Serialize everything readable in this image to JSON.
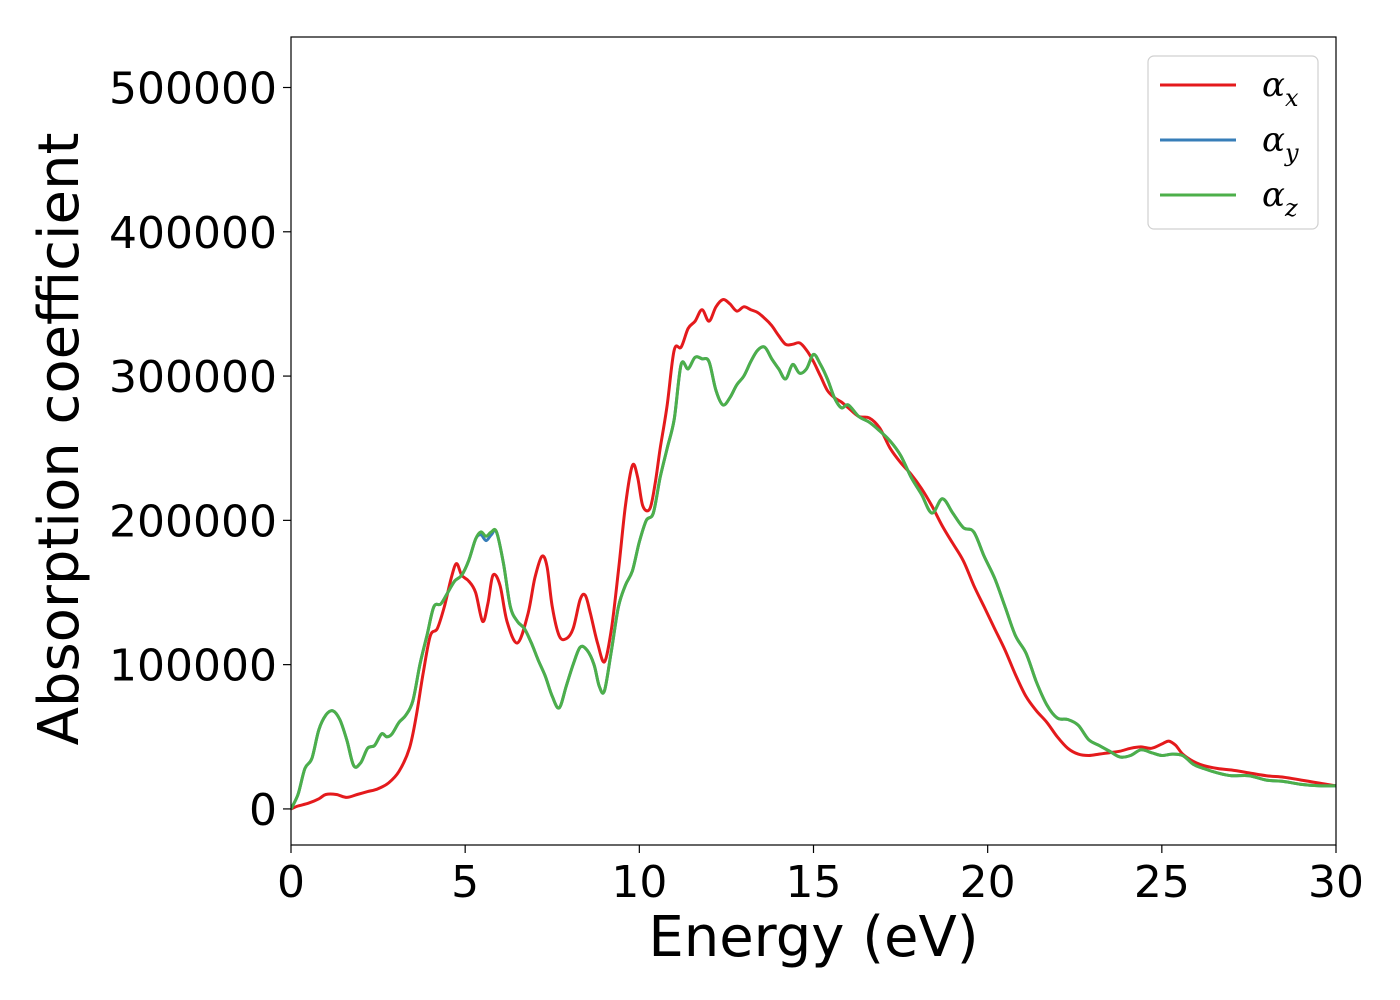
{
  "chart_data": {
    "type": "line",
    "xlabel": "Energy (eV)",
    "ylabel": "Absorption coefficient",
    "xlim": [
      0,
      30
    ],
    "ylim": [
      -25000,
      535000
    ],
    "xticks": [
      0,
      5,
      10,
      15,
      20,
      25,
      30
    ],
    "xtick_labels": [
      "0",
      "5",
      "10",
      "15",
      "20",
      "25",
      "30"
    ],
    "yticks": [
      0,
      100000,
      200000,
      300000,
      400000,
      500000
    ],
    "ytick_labels": [
      "0",
      "100000",
      "200000",
      "300000",
      "400000",
      "500000"
    ],
    "grid": false,
    "legend_position": "top-right",
    "series": [
      {
        "name": "α_x",
        "legend_base": "α",
        "legend_sub": "x",
        "color": "#e41a1c",
        "x": [
          0,
          0.2,
          0.5,
          0.8,
          1.0,
          1.3,
          1.6,
          1.9,
          2.2,
          2.5,
          2.8,
          3.1,
          3.4,
          3.6,
          3.8,
          4.0,
          4.2,
          4.4,
          4.6,
          4.75,
          4.9,
          5.1,
          5.3,
          5.5,
          5.65,
          5.8,
          6.0,
          6.2,
          6.5,
          6.8,
          7.0,
          7.2,
          7.35,
          7.5,
          7.7,
          7.9,
          8.1,
          8.3,
          8.45,
          8.6,
          8.8,
          9.0,
          9.2,
          9.4,
          9.6,
          9.8,
          9.95,
          10.1,
          10.3,
          10.45,
          10.6,
          10.8,
          11.0,
          11.2,
          11.4,
          11.6,
          11.8,
          12.0,
          12.2,
          12.4,
          12.6,
          12.8,
          13.0,
          13.2,
          13.4,
          13.6,
          13.8,
          14.0,
          14.2,
          14.4,
          14.6,
          14.8,
          15.0,
          15.2,
          15.4,
          15.6,
          15.8,
          16.0,
          16.3,
          16.6,
          16.9,
          17.2,
          17.5,
          17.8,
          18.1,
          18.4,
          18.7,
          19.0,
          19.3,
          19.6,
          19.9,
          20.2,
          20.5,
          20.8,
          21.1,
          21.4,
          21.7,
          22.0,
          22.3,
          22.6,
          22.9,
          23.2,
          23.5,
          23.8,
          24.1,
          24.4,
          24.7,
          25.0,
          25.2,
          25.4,
          25.6,
          25.9,
          26.2,
          26.6,
          27.0,
          27.5,
          28.0,
          28.5,
          29.0,
          29.5,
          30.0
        ],
        "y": [
          0,
          2000,
          4000,
          7000,
          10000,
          10000,
          8000,
          10000,
          12000,
          14000,
          18000,
          26000,
          42000,
          65000,
          95000,
          120000,
          125000,
          140000,
          160000,
          170000,
          162000,
          158000,
          150000,
          130000,
          142000,
          162000,
          155000,
          130000,
          115000,
          135000,
          160000,
          175000,
          168000,
          140000,
          120000,
          118000,
          125000,
          145000,
          148000,
          135000,
          115000,
          102000,
          125000,
          165000,
          210000,
          238000,
          230000,
          210000,
          208000,
          225000,
          250000,
          280000,
          318000,
          320000,
          333000,
          338000,
          346000,
          338000,
          348000,
          353000,
          350000,
          345000,
          348000,
          346000,
          344000,
          340000,
          335000,
          328000,
          322000,
          322000,
          323000,
          318000,
          310000,
          300000,
          290000,
          285000,
          282000,
          278000,
          272000,
          271000,
          264000,
          250000,
          240000,
          232000,
          222000,
          210000,
          196000,
          184000,
          172000,
          155000,
          140000,
          125000,
          110000,
          93000,
          78000,
          68000,
          60000,
          50000,
          42000,
          38000,
          37000,
          38000,
          39000,
          40000,
          42000,
          43000,
          42000,
          45000,
          47000,
          44000,
          38000,
          33000,
          30000,
          28000,
          27000,
          25000,
          23000,
          22000,
          20000,
          18000,
          16000
        ]
      },
      {
        "name": "α_y",
        "legend_base": "α",
        "legend_sub": "y",
        "color": "#377eb8",
        "x": [
          0,
          0.2,
          0.4,
          0.6,
          0.8,
          1.0,
          1.2,
          1.4,
          1.6,
          1.8,
          2.0,
          2.2,
          2.4,
          2.6,
          2.75,
          2.9,
          3.1,
          3.3,
          3.5,
          3.7,
          3.9,
          4.1,
          4.3,
          4.5,
          4.7,
          4.9,
          5.1,
          5.3,
          5.45,
          5.6,
          5.75,
          5.9,
          6.1,
          6.3,
          6.5,
          6.7,
          6.9,
          7.1,
          7.3,
          7.5,
          7.7,
          7.9,
          8.1,
          8.3,
          8.5,
          8.7,
          8.85,
          9.0,
          9.2,
          9.4,
          9.6,
          9.8,
          10.0,
          10.2,
          10.4,
          10.6,
          10.8,
          11.0,
          11.2,
          11.4,
          11.6,
          11.8,
          12.0,
          12.2,
          12.4,
          12.6,
          12.8,
          13.0,
          13.2,
          13.4,
          13.6,
          13.8,
          14.0,
          14.2,
          14.4,
          14.6,
          14.8,
          15.0,
          15.2,
          15.4,
          15.6,
          15.8,
          16.0,
          16.3,
          16.6,
          16.9,
          17.2,
          17.5,
          17.8,
          18.1,
          18.4,
          18.7,
          19.0,
          19.3,
          19.6,
          19.9,
          20.2,
          20.5,
          20.8,
          21.1,
          21.4,
          21.7,
          22.0,
          22.3,
          22.6,
          22.9,
          23.2,
          23.5,
          23.8,
          24.1,
          24.4,
          24.7,
          25.0,
          25.3,
          25.6,
          25.9,
          26.2,
          26.6,
          27.0,
          27.5,
          28.0,
          28.5,
          29.0,
          29.5,
          30.0
        ],
        "y": [
          0,
          10000,
          28000,
          35000,
          55000,
          65000,
          68000,
          62000,
          48000,
          30000,
          32000,
          42000,
          44000,
          52000,
          50000,
          52000,
          60000,
          65000,
          75000,
          100000,
          120000,
          140000,
          142000,
          150000,
          158000,
          162000,
          172000,
          187000,
          190000,
          186000,
          190000,
          192000,
          170000,
          140000,
          130000,
          125000,
          115000,
          103000,
          92000,
          78000,
          70000,
          85000,
          100000,
          112000,
          110000,
          100000,
          85000,
          82000,
          110000,
          140000,
          155000,
          165000,
          185000,
          200000,
          205000,
          230000,
          250000,
          270000,
          308000,
          305000,
          313000,
          312000,
          310000,
          290000,
          280000,
          285000,
          294000,
          300000,
          310000,
          318000,
          320000,
          312000,
          305000,
          298000,
          308000,
          302000,
          305000,
          315000,
          308000,
          298000,
          285000,
          278000,
          280000,
          272000,
          268000,
          262000,
          255000,
          245000,
          230000,
          218000,
          205000,
          215000,
          205000,
          195000,
          192000,
          175000,
          160000,
          140000,
          120000,
          108000,
          88000,
          72000,
          63000,
          62000,
          58000,
          48000,
          44000,
          40000,
          36000,
          37000,
          41000,
          39000,
          37000,
          38000,
          37000,
          31000,
          28000,
          25000,
          23000,
          23000,
          20000,
          19000,
          17000,
          16000,
          16000
        ]
      },
      {
        "name": "α_z",
        "legend_base": "α",
        "legend_sub": "z",
        "color": "#4daf4a",
        "x": [
          0,
          0.2,
          0.4,
          0.6,
          0.8,
          1.0,
          1.2,
          1.4,
          1.6,
          1.8,
          2.0,
          2.2,
          2.4,
          2.6,
          2.75,
          2.9,
          3.1,
          3.3,
          3.5,
          3.7,
          3.9,
          4.1,
          4.3,
          4.5,
          4.7,
          4.9,
          5.1,
          5.3,
          5.45,
          5.6,
          5.75,
          5.9,
          6.1,
          6.3,
          6.5,
          6.7,
          6.9,
          7.1,
          7.3,
          7.5,
          7.7,
          7.9,
          8.1,
          8.3,
          8.5,
          8.7,
          8.85,
          9.0,
          9.2,
          9.4,
          9.6,
          9.8,
          10.0,
          10.2,
          10.4,
          10.6,
          10.8,
          11.0,
          11.2,
          11.4,
          11.6,
          11.8,
          12.0,
          12.2,
          12.4,
          12.6,
          12.8,
          13.0,
          13.2,
          13.4,
          13.6,
          13.8,
          14.0,
          14.2,
          14.4,
          14.6,
          14.8,
          15.0,
          15.2,
          15.4,
          15.6,
          15.8,
          16.0,
          16.3,
          16.6,
          16.9,
          17.2,
          17.5,
          17.8,
          18.1,
          18.4,
          18.7,
          19.0,
          19.3,
          19.6,
          19.9,
          20.2,
          20.5,
          20.8,
          21.1,
          21.4,
          21.7,
          22.0,
          22.3,
          22.6,
          22.9,
          23.2,
          23.5,
          23.8,
          24.1,
          24.4,
          24.7,
          25.0,
          25.3,
          25.6,
          25.9,
          26.2,
          26.6,
          27.0,
          27.5,
          28.0,
          28.5,
          29.0,
          29.5,
          30.0
        ],
        "y": [
          0,
          10000,
          28000,
          35000,
          55000,
          65000,
          68000,
          62000,
          48000,
          30000,
          32000,
          42000,
          44000,
          52000,
          50000,
          52000,
          60000,
          65000,
          75000,
          100000,
          120000,
          140000,
          142000,
          150000,
          158000,
          162000,
          172000,
          187000,
          192000,
          189000,
          192000,
          192000,
          170000,
          140000,
          130000,
          125000,
          115000,
          103000,
          92000,
          78000,
          70000,
          85000,
          100000,
          112000,
          110000,
          100000,
          85000,
          82000,
          110000,
          140000,
          155000,
          165000,
          185000,
          200000,
          205000,
          230000,
          250000,
          270000,
          308000,
          305000,
          313000,
          312000,
          310000,
          290000,
          280000,
          285000,
          294000,
          300000,
          310000,
          318000,
          320000,
          312000,
          305000,
          298000,
          308000,
          302000,
          305000,
          315000,
          308000,
          298000,
          285000,
          278000,
          280000,
          272000,
          268000,
          262000,
          255000,
          245000,
          230000,
          218000,
          205000,
          215000,
          205000,
          195000,
          192000,
          175000,
          160000,
          140000,
          120000,
          108000,
          88000,
          72000,
          63000,
          62000,
          58000,
          48000,
          44000,
          40000,
          36000,
          37000,
          41000,
          39000,
          37000,
          38000,
          37000,
          31000,
          28000,
          25000,
          23000,
          23000,
          20000,
          19000,
          17000,
          16000,
          16000
        ]
      }
    ]
  }
}
